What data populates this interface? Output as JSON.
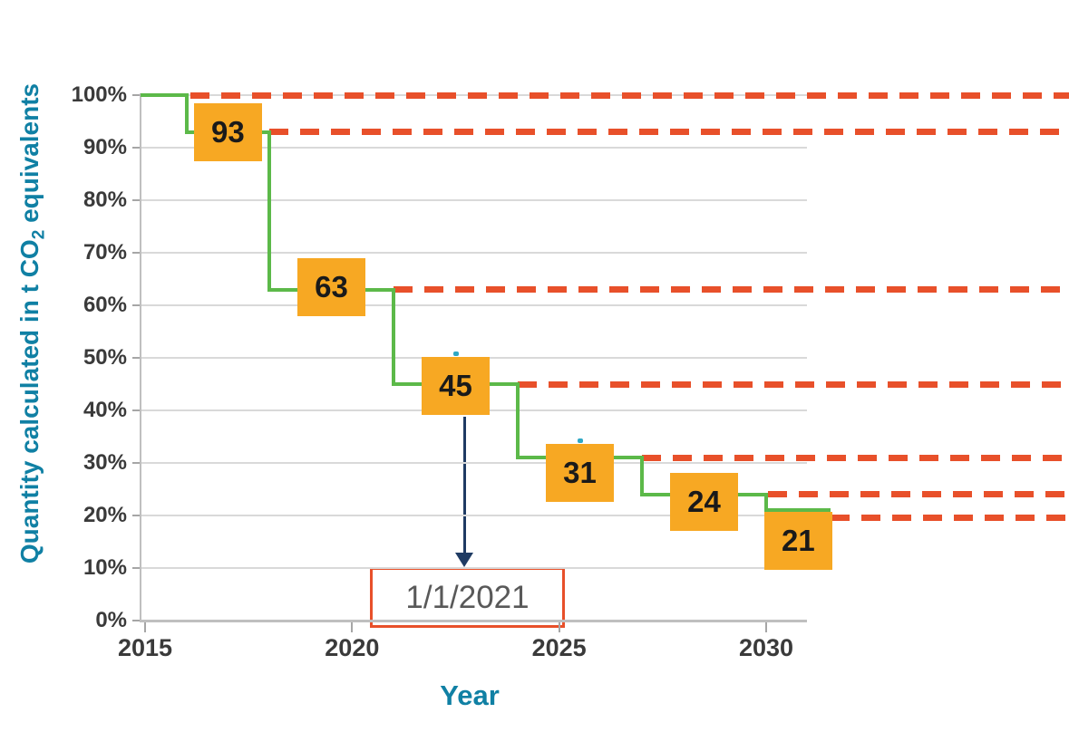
{
  "chart_data": {
    "type": "line",
    "subtype": "step-down",
    "title": "",
    "xlabel": "Year",
    "ylabel": {
      "prefix": "Quantity calculated in t CO",
      "subscript": "2",
      "suffix": " equivalents"
    },
    "xlim": [
      2014.9,
      2031.3
    ],
    "ylim": [
      0,
      100
    ],
    "grid": true,
    "legend": null,
    "x_ticks": [
      {
        "v": 2015,
        "label": "2015"
      },
      {
        "v": 2020,
        "label": "2020"
      },
      {
        "v": 2025,
        "label": "2025"
      },
      {
        "v": 2030,
        "label": "2030"
      }
    ],
    "y_ticks": [
      {
        "v": 0,
        "label": "0%"
      },
      {
        "v": 10,
        "label": "10%"
      },
      {
        "v": 20,
        "label": "20%"
      },
      {
        "v": 30,
        "label": "30%"
      },
      {
        "v": 40,
        "label": "40%"
      },
      {
        "v": 50,
        "label": "50%"
      },
      {
        "v": 60,
        "label": "60%"
      },
      {
        "v": 70,
        "label": "70%"
      },
      {
        "v": 80,
        "label": "80%"
      },
      {
        "v": 90,
        "label": "90%"
      },
      {
        "v": 100,
        "label": "100%"
      }
    ],
    "steps": [
      {
        "value": 100,
        "from": 2015,
        "to": 2016,
        "label": null
      },
      {
        "value": 93,
        "from": 2016,
        "to": 2018,
        "label": "93",
        "label_dy": 0,
        "marker": false
      },
      {
        "value": 63,
        "from": 2018,
        "to": 2021,
        "label": "63",
        "label_dy": -3,
        "marker": false
      },
      {
        "value": 45,
        "from": 2021,
        "to": 2024,
        "label": "45",
        "label_dy": 2,
        "marker": true
      },
      {
        "value": 31,
        "from": 2024,
        "to": 2027,
        "label": "31",
        "label_dy": 17,
        "marker": true
      },
      {
        "value": 24,
        "from": 2027,
        "to": 2030,
        "label": "24",
        "label_dy": 8,
        "marker": false
      },
      {
        "value": 21,
        "from": 2030,
        "to": 2031.55,
        "label": "21",
        "label_dy": 34,
        "marker": false
      }
    ],
    "dashed_lines": [
      {
        "level": 100,
        "from": 2016.1
      },
      {
        "level": 93,
        "from": 2018.0
      },
      {
        "level": 63,
        "from": 2021.0
      },
      {
        "level": 45,
        "from": 2024.0
      },
      {
        "level": 31,
        "from": 2027.0
      },
      {
        "level": 24,
        "from": 2030.05
      },
      {
        "level": 21,
        "from": 2031.55,
        "draw_level": 19.5
      }
    ],
    "annotation": {
      "text": "1/1/2021",
      "points_to_step": "45"
    },
    "colors": {
      "step_line": "#5cb949",
      "label_box": "#f7a823",
      "label_text": "#1a1a1a",
      "dashed": "#e8502a",
      "axis_title": "#1080a4",
      "tick_text": "#3a3a3a",
      "grid": "#d9d9d9",
      "axis": "#bfbfbf",
      "tick_mark": "#a6a6a6",
      "annotation_border": "#e8502a",
      "annotation_text": "#595959",
      "arrow": "#1f3b63",
      "marker": "#2fa8c5"
    }
  }
}
